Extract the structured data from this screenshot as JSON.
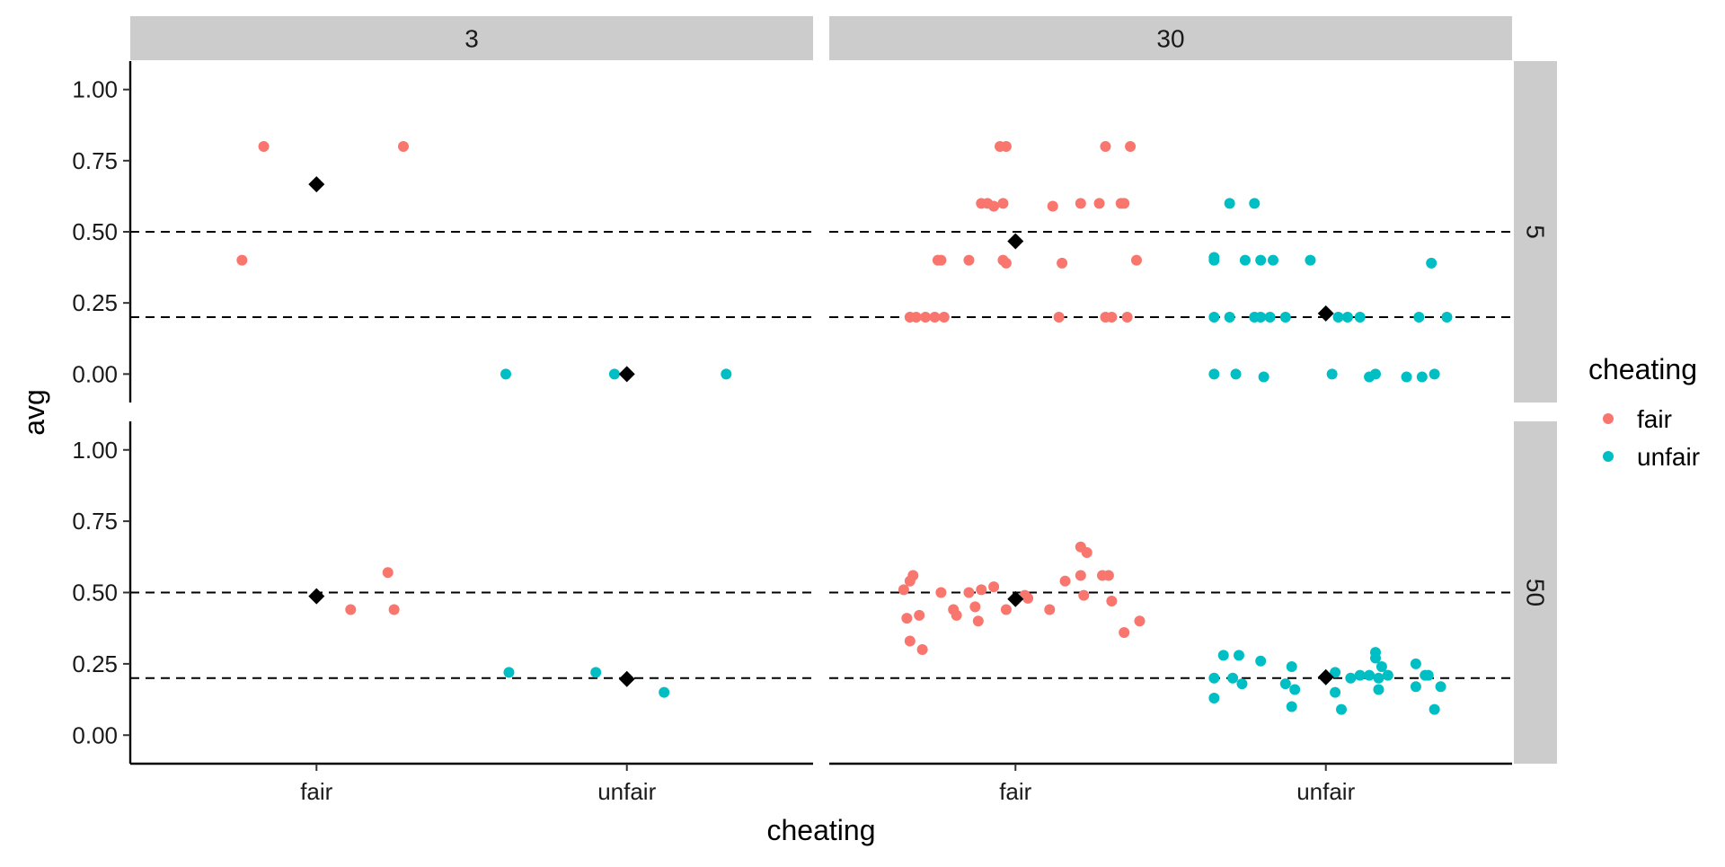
{
  "chart_data": {
    "type": "scatter",
    "xlabel": "cheating",
    "ylabel": "avg",
    "categories": [
      "fair",
      "unfair"
    ],
    "ylim": [
      -0.1,
      1.1
    ],
    "yticks": [
      0.0,
      0.25,
      0.5,
      0.75,
      1.0
    ],
    "ytick_labels": [
      "0.00",
      "0.25",
      "0.50",
      "0.75",
      "1.00"
    ],
    "reference_lines": [
      0.2,
      0.5
    ],
    "column_facet_labels": [
      "3",
      "30"
    ],
    "row_facet_labels": [
      "5",
      "50"
    ],
    "legend": {
      "title": "cheating",
      "placement": "right",
      "entries": [
        {
          "label": "fair",
          "color": "#F8766D"
        },
        {
          "label": "unfair",
          "color": "#00BFC4"
        }
      ]
    },
    "mean_marker_color": "#000000",
    "panels": [
      {
        "col": "3",
        "row": "5",
        "points": [
          {
            "cat": "fair",
            "x": 0.76,
            "y": 0.4
          },
          {
            "cat": "fair",
            "x": 0.83,
            "y": 0.8
          },
          {
            "cat": "fair",
            "x": 1.28,
            "y": 0.8
          },
          {
            "cat": "unfair",
            "x": 1.61,
            "y": 0.0
          },
          {
            "cat": "unfair",
            "x": 1.96,
            "y": 0.0
          },
          {
            "cat": "unfair",
            "x": 2.32,
            "y": 0.0
          }
        ],
        "means": [
          {
            "cat": "fair",
            "y": 0.667
          },
          {
            "cat": "unfair",
            "y": 0.0
          }
        ]
      },
      {
        "col": "30",
        "row": "5",
        "points": [
          {
            "cat": "fair",
            "x": 0.66,
            "y": 0.2
          },
          {
            "cat": "fair",
            "x": 0.68,
            "y": 0.2
          },
          {
            "cat": "fair",
            "x": 0.71,
            "y": 0.2
          },
          {
            "cat": "fair",
            "x": 0.74,
            "y": 0.2
          },
          {
            "cat": "fair",
            "x": 0.77,
            "y": 0.2
          },
          {
            "cat": "fair",
            "x": 1.14,
            "y": 0.2
          },
          {
            "cat": "fair",
            "x": 1.29,
            "y": 0.2
          },
          {
            "cat": "fair",
            "x": 1.31,
            "y": 0.2
          },
          {
            "cat": "fair",
            "x": 1.36,
            "y": 0.2
          },
          {
            "cat": "fair",
            "x": 0.75,
            "y": 0.4
          },
          {
            "cat": "fair",
            "x": 0.76,
            "y": 0.4
          },
          {
            "cat": "fair",
            "x": 0.85,
            "y": 0.4
          },
          {
            "cat": "fair",
            "x": 0.96,
            "y": 0.4
          },
          {
            "cat": "fair",
            "x": 0.97,
            "y": 0.39
          },
          {
            "cat": "fair",
            "x": 1.15,
            "y": 0.39
          },
          {
            "cat": "fair",
            "x": 1.39,
            "y": 0.4
          },
          {
            "cat": "fair",
            "x": 0.89,
            "y": 0.6
          },
          {
            "cat": "fair",
            "x": 0.91,
            "y": 0.6
          },
          {
            "cat": "fair",
            "x": 0.93,
            "y": 0.59
          },
          {
            "cat": "fair",
            "x": 0.96,
            "y": 0.6
          },
          {
            "cat": "fair",
            "x": 1.12,
            "y": 0.59
          },
          {
            "cat": "fair",
            "x": 1.21,
            "y": 0.6
          },
          {
            "cat": "fair",
            "x": 1.27,
            "y": 0.6
          },
          {
            "cat": "fair",
            "x": 1.34,
            "y": 0.6
          },
          {
            "cat": "fair",
            "x": 1.35,
            "y": 0.6
          },
          {
            "cat": "fair",
            "x": 0.95,
            "y": 0.8
          },
          {
            "cat": "fair",
            "x": 0.97,
            "y": 0.8
          },
          {
            "cat": "fair",
            "x": 1.29,
            "y": 0.8
          },
          {
            "cat": "fair",
            "x": 1.37,
            "y": 0.8
          },
          {
            "cat": "unfair",
            "x": 1.64,
            "y": 0.2
          },
          {
            "cat": "unfair",
            "x": 1.69,
            "y": 0.2
          },
          {
            "cat": "unfair",
            "x": 1.77,
            "y": 0.2
          },
          {
            "cat": "unfair",
            "x": 1.79,
            "y": 0.2
          },
          {
            "cat": "unfair",
            "x": 1.82,
            "y": 0.2
          },
          {
            "cat": "unfair",
            "x": 1.87,
            "y": 0.2
          },
          {
            "cat": "unfair",
            "x": 2.04,
            "y": 0.2
          },
          {
            "cat": "unfair",
            "x": 2.07,
            "y": 0.2
          },
          {
            "cat": "unfair",
            "x": 2.11,
            "y": 0.2
          },
          {
            "cat": "unfair",
            "x": 2.3,
            "y": 0.2
          },
          {
            "cat": "unfair",
            "x": 2.39,
            "y": 0.2
          },
          {
            "cat": "unfair",
            "x": 1.64,
            "y": 0.4
          },
          {
            "cat": "unfair",
            "x": 1.64,
            "y": 0.41
          },
          {
            "cat": "unfair",
            "x": 1.74,
            "y": 0.4
          },
          {
            "cat": "unfair",
            "x": 1.79,
            "y": 0.4
          },
          {
            "cat": "unfair",
            "x": 1.83,
            "y": 0.4
          },
          {
            "cat": "unfair",
            "x": 1.95,
            "y": 0.4
          },
          {
            "cat": "unfair",
            "x": 2.34,
            "y": 0.39
          },
          {
            "cat": "unfair",
            "x": 1.69,
            "y": 0.6
          },
          {
            "cat": "unfair",
            "x": 1.77,
            "y": 0.6
          },
          {
            "cat": "unfair",
            "x": 1.64,
            "y": 0.0
          },
          {
            "cat": "unfair",
            "x": 1.71,
            "y": 0.0
          },
          {
            "cat": "unfair",
            "x": 1.8,
            "y": -0.01
          },
          {
            "cat": "unfair",
            "x": 2.02,
            "y": 0.0
          },
          {
            "cat": "unfair",
            "x": 2.14,
            "y": -0.01
          },
          {
            "cat": "unfair",
            "x": 2.16,
            "y": 0.0
          },
          {
            "cat": "unfair",
            "x": 2.26,
            "y": -0.01
          },
          {
            "cat": "unfair",
            "x": 2.31,
            "y": -0.01
          },
          {
            "cat": "unfair",
            "x": 2.35,
            "y": 0.0
          }
        ],
        "means": [
          {
            "cat": "fair",
            "y": 0.467
          },
          {
            "cat": "unfair",
            "y": 0.213
          }
        ]
      },
      {
        "col": "3",
        "row": "50",
        "points": [
          {
            "cat": "fair",
            "x": 1.11,
            "y": 0.44
          },
          {
            "cat": "fair",
            "x": 1.25,
            "y": 0.44
          },
          {
            "cat": "fair",
            "x": 1.23,
            "y": 0.57
          },
          {
            "cat": "unfair",
            "x": 1.62,
            "y": 0.22
          },
          {
            "cat": "unfair",
            "x": 1.9,
            "y": 0.22
          },
          {
            "cat": "unfair",
            "x": 2.12,
            "y": 0.15
          }
        ],
        "means": [
          {
            "cat": "fair",
            "y": 0.487
          },
          {
            "cat": "unfair",
            "y": 0.197
          }
        ]
      },
      {
        "col": "30",
        "row": "50",
        "points": [
          {
            "cat": "fair",
            "x": 0.64,
            "y": 0.51
          },
          {
            "cat": "fair",
            "x": 0.66,
            "y": 0.54
          },
          {
            "cat": "fair",
            "x": 0.67,
            "y": 0.56
          },
          {
            "cat": "fair",
            "x": 0.65,
            "y": 0.41
          },
          {
            "cat": "fair",
            "x": 0.69,
            "y": 0.42
          },
          {
            "cat": "fair",
            "x": 0.66,
            "y": 0.33
          },
          {
            "cat": "fair",
            "x": 0.7,
            "y": 0.3
          },
          {
            "cat": "fair",
            "x": 0.76,
            "y": 0.5
          },
          {
            "cat": "fair",
            "x": 0.8,
            "y": 0.44
          },
          {
            "cat": "fair",
            "x": 0.81,
            "y": 0.42
          },
          {
            "cat": "fair",
            "x": 0.85,
            "y": 0.5
          },
          {
            "cat": "fair",
            "x": 0.87,
            "y": 0.45
          },
          {
            "cat": "fair",
            "x": 0.88,
            "y": 0.4
          },
          {
            "cat": "fair",
            "x": 0.89,
            "y": 0.51
          },
          {
            "cat": "fair",
            "x": 0.93,
            "y": 0.52
          },
          {
            "cat": "fair",
            "x": 0.97,
            "y": 0.44
          },
          {
            "cat": "fair",
            "x": 1.03,
            "y": 0.49
          },
          {
            "cat": "fair",
            "x": 1.04,
            "y": 0.48
          },
          {
            "cat": "fair",
            "x": 1.11,
            "y": 0.44
          },
          {
            "cat": "fair",
            "x": 1.16,
            "y": 0.54
          },
          {
            "cat": "fair",
            "x": 1.21,
            "y": 0.56
          },
          {
            "cat": "fair",
            "x": 1.21,
            "y": 0.66
          },
          {
            "cat": "fair",
            "x": 1.23,
            "y": 0.64
          },
          {
            "cat": "fair",
            "x": 1.22,
            "y": 0.49
          },
          {
            "cat": "fair",
            "x": 1.28,
            "y": 0.56
          },
          {
            "cat": "fair",
            "x": 1.3,
            "y": 0.56
          },
          {
            "cat": "fair",
            "x": 1.31,
            "y": 0.47
          },
          {
            "cat": "fair",
            "x": 1.35,
            "y": 0.36
          },
          {
            "cat": "fair",
            "x": 1.4,
            "y": 0.4
          },
          {
            "cat": "unfair",
            "x": 1.64,
            "y": 0.13
          },
          {
            "cat": "unfair",
            "x": 1.64,
            "y": 0.2
          },
          {
            "cat": "unfair",
            "x": 1.67,
            "y": 0.28
          },
          {
            "cat": "unfair",
            "x": 1.7,
            "y": 0.2
          },
          {
            "cat": "unfair",
            "x": 1.72,
            "y": 0.28
          },
          {
            "cat": "unfair",
            "x": 1.73,
            "y": 0.18
          },
          {
            "cat": "unfair",
            "x": 1.79,
            "y": 0.26
          },
          {
            "cat": "unfair",
            "x": 1.87,
            "y": 0.18
          },
          {
            "cat": "unfair",
            "x": 1.89,
            "y": 0.24
          },
          {
            "cat": "unfair",
            "x": 1.9,
            "y": 0.16
          },
          {
            "cat": "unfair",
            "x": 1.89,
            "y": 0.1
          },
          {
            "cat": "unfair",
            "x": 2.03,
            "y": 0.15
          },
          {
            "cat": "unfair",
            "x": 2.03,
            "y": 0.22
          },
          {
            "cat": "unfair",
            "x": 2.05,
            "y": 0.09
          },
          {
            "cat": "unfair",
            "x": 2.08,
            "y": 0.2
          },
          {
            "cat": "unfair",
            "x": 2.11,
            "y": 0.21
          },
          {
            "cat": "unfair",
            "x": 2.14,
            "y": 0.21
          },
          {
            "cat": "unfair",
            "x": 2.16,
            "y": 0.29
          },
          {
            "cat": "unfair",
            "x": 2.16,
            "y": 0.27
          },
          {
            "cat": "unfair",
            "x": 2.17,
            "y": 0.2
          },
          {
            "cat": "unfair",
            "x": 2.17,
            "y": 0.16
          },
          {
            "cat": "unfair",
            "x": 2.18,
            "y": 0.24
          },
          {
            "cat": "unfair",
            "x": 2.2,
            "y": 0.21
          },
          {
            "cat": "unfair",
            "x": 2.29,
            "y": 0.25
          },
          {
            "cat": "unfair",
            "x": 2.29,
            "y": 0.17
          },
          {
            "cat": "unfair",
            "x": 2.32,
            "y": 0.21
          },
          {
            "cat": "unfair",
            "x": 2.33,
            "y": 0.21
          },
          {
            "cat": "unfair",
            "x": 2.35,
            "y": 0.09
          },
          {
            "cat": "unfair",
            "x": 2.37,
            "y": 0.17
          }
        ],
        "means": [
          {
            "cat": "fair",
            "y": 0.477
          },
          {
            "cat": "unfair",
            "y": 0.203
          }
        ]
      }
    ]
  }
}
